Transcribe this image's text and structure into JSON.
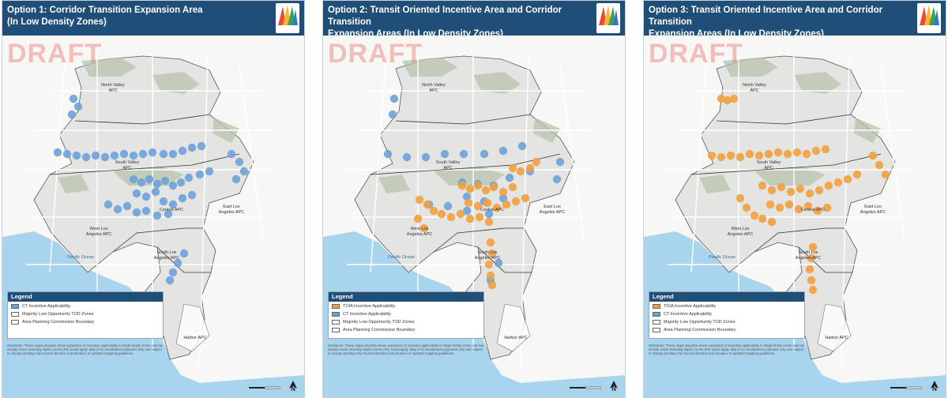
{
  "panels": [
    {
      "id": "p1",
      "title_line1": "Option 1: Corridor Transition Expansion Area",
      "title_line2": "(In Low Density Zones)",
      "watermark": "DRAFT",
      "show_tod": false,
      "show_ct": true,
      "legend": {
        "title": "Legend",
        "items": [
          {
            "label": "CT Incentive Applicability",
            "color": "#6a9fd8"
          },
          {
            "label": "Majority Low Opportunity TOD Zones",
            "color": "#ffffff"
          },
          {
            "label": "Area Planning Commission Boundary",
            "color": "#ffffff"
          }
        ]
      }
    },
    {
      "id": "p2",
      "title_line1": "Option 2: Transit Oriented Incentive Area and Corridor Transition",
      "title_line2": "Expansion Areas (In Low Density Zones)",
      "watermark": "DRAFT",
      "show_tod": true,
      "show_ct": true,
      "legend": {
        "title": "Legend",
        "items": [
          {
            "label": "TOIA Incentive Applicability",
            "color": "#f0a040"
          },
          {
            "label": "CT Incentive Applicability",
            "color": "#6a9fd8"
          },
          {
            "label": "Majority Low Opportunity TOD Zones",
            "color": "#ffffff"
          },
          {
            "label": "Area Planning Commission Boundary",
            "color": "#ffffff"
          }
        ]
      }
    },
    {
      "id": "p3",
      "title_line1": "Option 3: Transit Oriented Incentive Area and Corridor Transition",
      "title_line2": "Expansion Areas (In Low Density Zones)",
      "watermark": "DRAFT",
      "show_tod": true,
      "show_ct": false,
      "legend": {
        "title": "Legend",
        "items": [
          {
            "label": "TOIA Incentive Applicability",
            "color": "#f0a040"
          },
          {
            "label": "CT Incentive Applicability",
            "color": "#6a9fd8"
          },
          {
            "label": "Majority Low Opportunity TOD Zones",
            "color": "#ffffff"
          },
          {
            "label": "Area Planning Commission Boundary",
            "color": "#ffffff"
          }
        ]
      }
    }
  ],
  "map_labels": {
    "north_valley": "North Valley APC",
    "south_valley": "South Valley APC",
    "west_la": "West Los Angeles APC",
    "east_la": "East Los Angeles APC",
    "central": "Central APC",
    "south_la": "South Los Angeles APC",
    "harbor": "Harbor APC",
    "ocean": "Pacific Ocean",
    "north_arrow": "N"
  },
  "disclaimer": "Disclaimer: These maps visualize where expansion of incentive applicability to single family zones and low density zones including duplex zones (R2) would apply. Map is for visualization purposes only and subject to change pending City Council direction and issuance of updated mapping guidelines.",
  "colors": {
    "header": "#1f4e79",
    "ct": "#6a9fd8",
    "tod": "#f0a040",
    "ocean": "#a9d4ee",
    "land": "#f7f7f5",
    "city": "#e4e4e2",
    "hills": "#b8c4ad"
  }
}
